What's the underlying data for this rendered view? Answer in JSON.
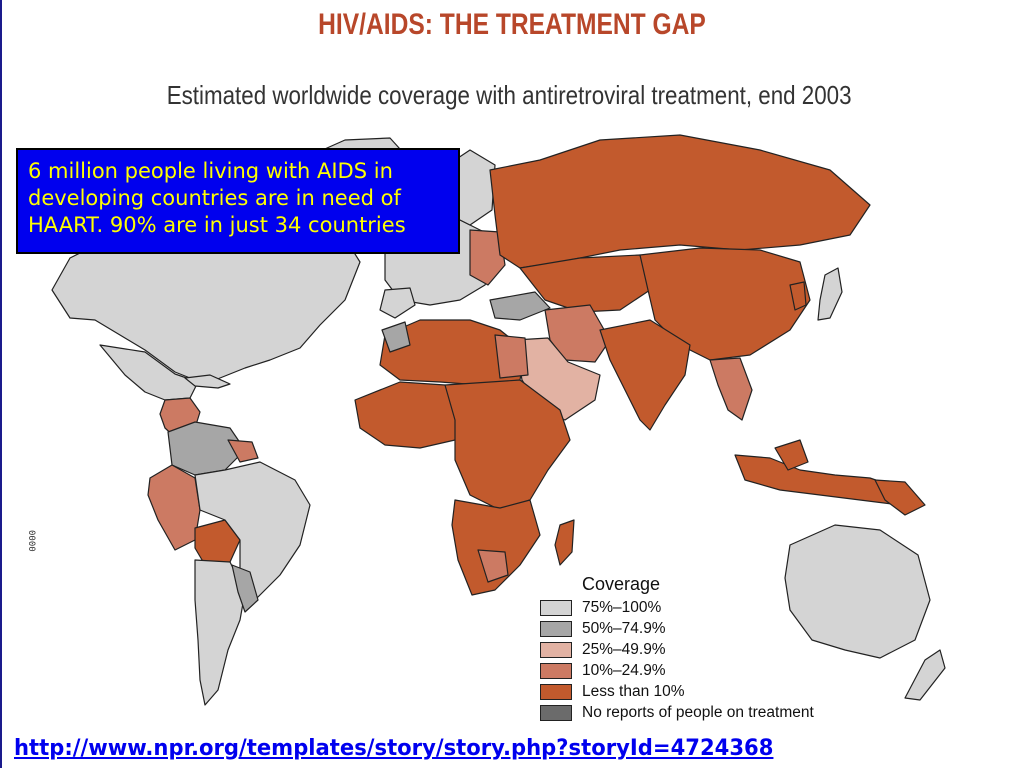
{
  "slide": {
    "title": "HIV/AIDS: THE TREATMENT GAP",
    "subtitle": "Estimated worldwide coverage with antiretroviral treatment, end 2003",
    "side_code": "0000"
  },
  "callout": {
    "lines": [
      "6 million people living with AIDS in",
      "developing countries are in need of",
      "HAART. 90% are in just 34 countries"
    ],
    "background": "#0000ee",
    "text_color": "#ffff00"
  },
  "legend": {
    "title": "Coverage",
    "items": [
      {
        "label": "75%–100%",
        "color": "#d4d4d4"
      },
      {
        "label": "50%–74.9%",
        "color": "#a6a6a6"
      },
      {
        "label": "25%–49.9%",
        "color": "#e2b2a3"
      },
      {
        "label": "10%–24.9%",
        "color": "#cc7a63"
      },
      {
        "label": "Less than 10%",
        "color": "#c25a2d"
      },
      {
        "label": "No reports of people on treatment",
        "color": "#6b6b6b"
      }
    ]
  },
  "colors": {
    "high": "#d4d4d4",
    "mid_high": "#a6a6a6",
    "mid": "#e2b2a3",
    "low_mid": "#cc7a63",
    "low": "#c25a2d",
    "none": "#6b6b6b",
    "title": "#b8472a",
    "link": "#0000ee"
  },
  "source": {
    "url_text": "http://www.npr.org/templates/story/story.php?storyId=4724368"
  }
}
